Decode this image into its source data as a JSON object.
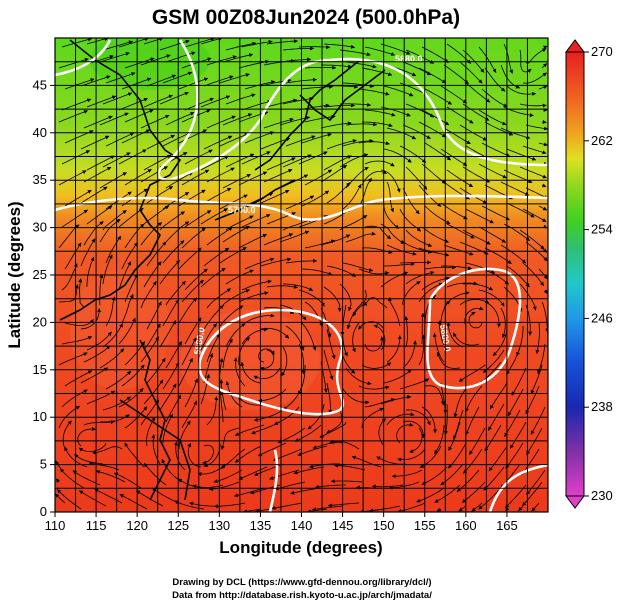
{
  "title": "GSM 00Z08Jun2024 (500.0hPa)",
  "xlabel": "Longitude (degrees)",
  "ylabel": "Latitude  (degrees)",
  "credit_line1": "Drawing by DCL (https://www.gfd-dennou.org/library/dcl/)",
  "credit_line2": "Data from http://database.rish.kyoto-u.ac.jp/arch/jmadata/",
  "contour_labels": [
    "5700.0",
    "5880.0",
    "5880.0",
    "5880.0"
  ],
  "chart_data": {
    "type": "heatmap",
    "variable": "temperature (K) with wind streamlines",
    "xlim": [
      110,
      170
    ],
    "ylim": [
      0,
      50
    ],
    "x_ticks": [
      110,
      115,
      120,
      125,
      130,
      135,
      140,
      145,
      150,
      155,
      160,
      165
    ],
    "y_ticks": [
      0,
      5,
      10,
      15,
      20,
      25,
      30,
      35,
      40,
      45
    ],
    "colorbar": {
      "range": [
        230,
        270
      ],
      "ticks": [
        230,
        238,
        246,
        254,
        262,
        270
      ],
      "colors": [
        "#e040c8",
        "#6030a0",
        "#1830c0",
        "#2090e0",
        "#20c0c0",
        "#30c060",
        "#40d020",
        "#90d820",
        "#e0e020",
        "#f0a020",
        "#f06020",
        "#e82020"
      ]
    },
    "temperature_field_by_latitude": [
      {
        "lat": 48,
        "value": 253
      },
      {
        "lat": 44,
        "value": 256
      },
      {
        "lat": 40,
        "value": 259
      },
      {
        "lat": 36,
        "value": 262
      },
      {
        "lat": 32,
        "value": 266
      },
      {
        "lat": 28,
        "value": 267
      },
      {
        "lat": 20,
        "value": 268
      },
      {
        "lat": 10,
        "value": 268
      },
      {
        "lat": 0,
        "value": 268
      }
    ],
    "height_contours_gpm": [
      5700.0,
      5880.0
    ]
  }
}
